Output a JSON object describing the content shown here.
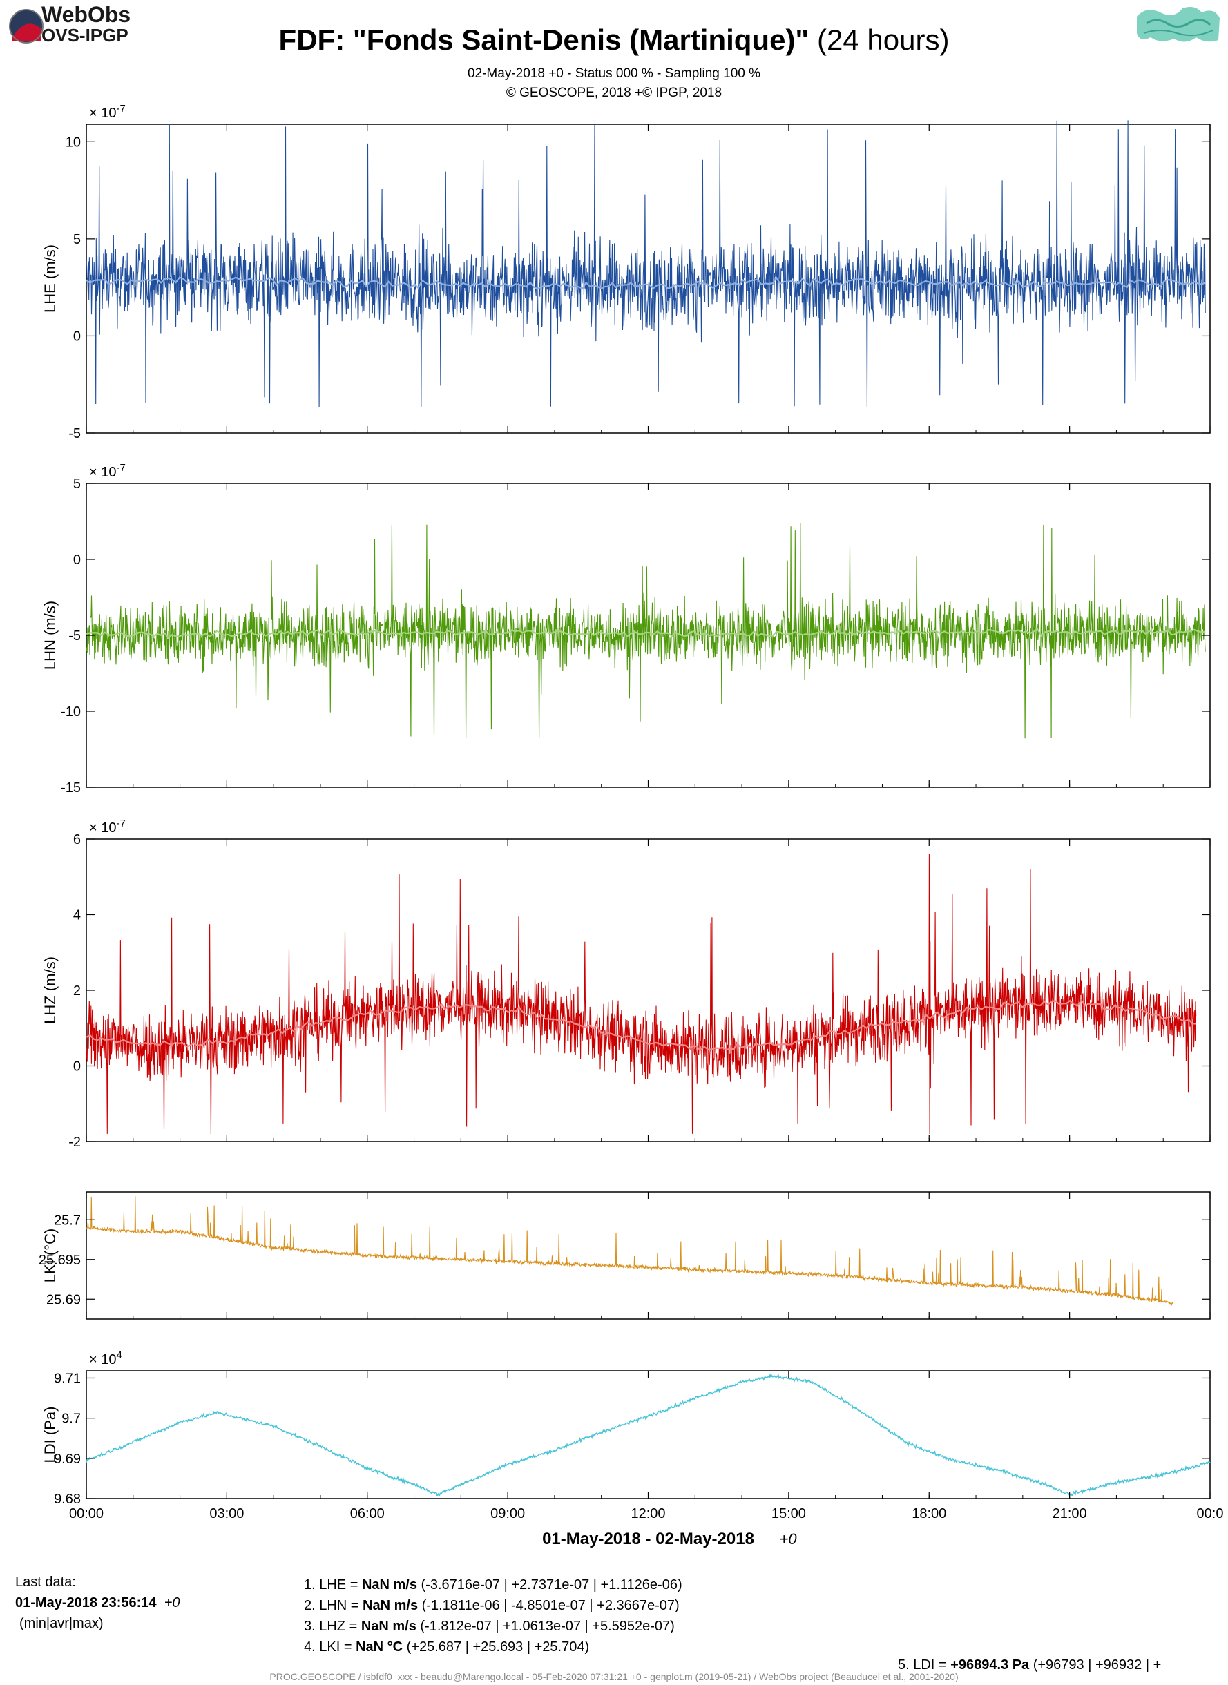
{
  "header": {
    "logo_line1": "WebObs",
    "logo_line2": "OVS-IPGP",
    "title_bold": "FDF: \"Fonds Saint-Denis (Martinique)\"",
    "title_normal": " (24 hours)",
    "subtitle1": "02-May-2018 +0 - Status 000 % - Sampling 100 %",
    "subtitle2": "© GEOSCOPE, 2018 +© IPGP, 2018"
  },
  "colors": {
    "LHE": "#1f4e9c",
    "LHE_avg": "#8fb0df",
    "LHN": "#4f9a0a",
    "LHN_avg": "#a8d382",
    "LHZ": "#cc0000",
    "LHZ_avg": "#f08a8a",
    "LKI": "#d9901c",
    "LDI": "#49c5d8"
  },
  "chart_data": [
    {
      "type": "line",
      "channel": "LHE",
      "ylabel": "LHE (m/s)",
      "exponent": "× 10-7",
      "ylim": [
        -5,
        10.9
      ],
      "yticks": [
        -5,
        0,
        5,
        10
      ],
      "series": [
        {
          "x": [
            0,
            3,
            6,
            9,
            12,
            15,
            18,
            21,
            23.9
          ],
          "values": [
            2.8,
            2.9,
            2.7,
            2.6,
            2.6,
            2.8,
            2.7,
            2.7,
            2.8
          ]
        },
        {
          "min": -3.67,
          "avg": 2.74,
          "max": 11.1
        }
      ]
    },
    {
      "type": "line",
      "channel": "LHN",
      "ylabel": "LHN (m/s)",
      "exponent": "× 10-7",
      "ylim": [
        -15,
        5
      ],
      "yticks": [
        -15,
        -10,
        -5,
        0,
        5
      ],
      "series": [
        {
          "x": [
            0,
            3,
            6,
            9,
            12,
            15,
            18,
            21,
            23.9
          ],
          "values": [
            -4.9,
            -4.9,
            -4.8,
            -4.8,
            -4.9,
            -4.9,
            -4.8,
            -4.8,
            -4.8
          ]
        },
        {
          "min": -11.8,
          "avg": -4.85,
          "max": 2.37
        }
      ]
    },
    {
      "type": "line",
      "channel": "LHZ",
      "ylabel": "LHZ (m/s)",
      "exponent": "× 10-7",
      "ylim": [
        -2,
        6
      ],
      "yticks": [
        -2,
        0,
        2,
        4,
        6
      ],
      "series": [
        {
          "x": [
            0,
            1.5,
            3,
            4.5,
            6,
            7.5,
            9,
            10.5,
            12,
            13.5,
            15,
            16.5,
            18,
            19.5,
            21,
            22.5,
            23.7
          ],
          "values": [
            0.75,
            0.55,
            0.65,
            1.0,
            1.4,
            1.6,
            1.5,
            1.1,
            0.6,
            0.45,
            0.6,
            1.0,
            1.3,
            1.6,
            1.7,
            1.45,
            1.15
          ]
        },
        {
          "min": -1.81,
          "avg": 1.06,
          "max": 5.6
        }
      ]
    },
    {
      "type": "line",
      "channel": "LKI",
      "ylabel": "LKI (°C)",
      "exponent": "",
      "ylim": [
        25.6875,
        25.7035
      ],
      "yticks": [
        25.69,
        25.695,
        25.7
      ],
      "series": [
        {
          "x": [
            0,
            1,
            2,
            3,
            4,
            5,
            6,
            8,
            10,
            12,
            14,
            16,
            18,
            20,
            21,
            22,
            23.2
          ],
          "values": [
            25.699,
            25.6985,
            25.6985,
            25.6975,
            25.6965,
            25.696,
            25.6955,
            25.695,
            25.6945,
            25.694,
            25.6935,
            25.693,
            25.692,
            25.6915,
            25.691,
            25.6905,
            25.6895
          ]
        },
        {
          "min": 25.687,
          "avg": 25.693,
          "max": 25.704
        }
      ]
    },
    {
      "type": "line",
      "channel": "LDI",
      "ylabel": "LDI (Pa)",
      "exponent": "× 104",
      "ylim": [
        9.68,
        9.7118
      ],
      "yticks": [
        9.68,
        9.69,
        9.7,
        9.71
      ],
      "series": [
        {
          "x": [
            0,
            1,
            2,
            2.8,
            4,
            5,
            6,
            7,
            7.5,
            8,
            9,
            10,
            11,
            12,
            13,
            14,
            14.7,
            15.5,
            16.5,
            17.5,
            18.5,
            19.5,
            20.5,
            21,
            22,
            23,
            24
          ],
          "values": [
            9.6895,
            9.694,
            9.699,
            9.7014,
            9.698,
            9.693,
            9.6875,
            9.6835,
            9.681,
            9.6835,
            9.6885,
            9.692,
            9.6965,
            9.7005,
            9.705,
            9.709,
            9.7105,
            9.709,
            9.702,
            9.694,
            9.6895,
            9.687,
            9.6835,
            9.681,
            9.684,
            9.686,
            9.689
          ]
        },
        {
          "min": 96793,
          "avg": 96932,
          "max": ""
        }
      ]
    }
  ],
  "xaxis": {
    "ticks": [
      "00:00",
      "03:00",
      "06:00",
      "09:00",
      "12:00",
      "15:00",
      "18:00",
      "21:00",
      "00:0"
    ],
    "label": "01-May-2018 - 02-May-2018",
    "tz": "+0"
  },
  "footer": {
    "last_data_label": "Last data:",
    "last_data_value": "01-May-2018 23:56:14",
    "last_data_tz": "+0",
    "minavrmax": "(min|avr|max)",
    "lines": [
      {
        "prefix": "1. LHE = ",
        "bold": "NaN m/s",
        "rest": "  (-3.6716e-07 | +2.7371e-07 | +1.1126e-06)"
      },
      {
        "prefix": "2. LHN = ",
        "bold": "NaN m/s",
        "rest": "  (-1.1811e-06 | -4.8501e-07 | +2.3667e-07)"
      },
      {
        "prefix": "3. LHZ = ",
        "bold": "NaN m/s",
        "rest": "  (-1.812e-07 | +1.0613e-07 | +5.5952e-07)"
      },
      {
        "prefix": "4. LKI = ",
        "bold": "NaN °C",
        "rest": " (+25.687 | +25.693 | +25.704)"
      }
    ],
    "ldi_prefix": "5. LDI = ",
    "ldi_bold": "+96894.3 Pa",
    "ldi_rest": " (+96793 | +96932 | +",
    "credits": "PROC.GEOSCOPE / isbfdf0_xxx - beaudu@Marengo.local - 05-Feb-2020 07:31:21 +0 - genplot.m (2019-05-21) / WebObs project (Beauducel et al., 2001-2020)"
  }
}
